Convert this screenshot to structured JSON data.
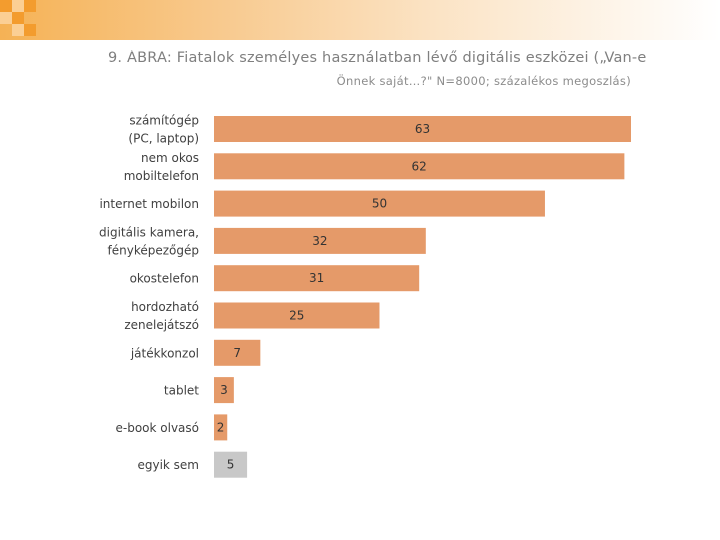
{
  "header": {
    "title": "9. ÁBRA: Fiatalok személyes használatban lévő digitális eszközei („Van-e",
    "subtitle": "Önnek saját…?\" N=8000; százalékos megoszlás)"
  },
  "colors": {
    "bar": "#e59a69",
    "bar_none": "#c8c8c8",
    "label_text": "#404040",
    "value_text": "#333333",
    "accent_orange": "#f39c2e",
    "accent_light": "#fbcf94"
  },
  "chart_data": {
    "type": "bar",
    "orientation": "horizontal",
    "categories": [
      [
        "számítógép",
        "(PC, laptop)"
      ],
      [
        "nem okos",
        "mobiltelefon"
      ],
      [
        "internet mobilon"
      ],
      [
        "digitális kamera,",
        "fényképezőgép"
      ],
      [
        "okostelefon"
      ],
      [
        "hordozható",
        "zenelejátszó"
      ],
      [
        "játékkonzol"
      ],
      [
        "tablet"
      ],
      [
        "e-book olvasó"
      ],
      [
        "egyik sem"
      ]
    ],
    "values": [
      63,
      62,
      50,
      32,
      31,
      25,
      7,
      3,
      2,
      5
    ],
    "xlim": [
      0,
      63
    ],
    "grid": false,
    "legend": "none"
  }
}
